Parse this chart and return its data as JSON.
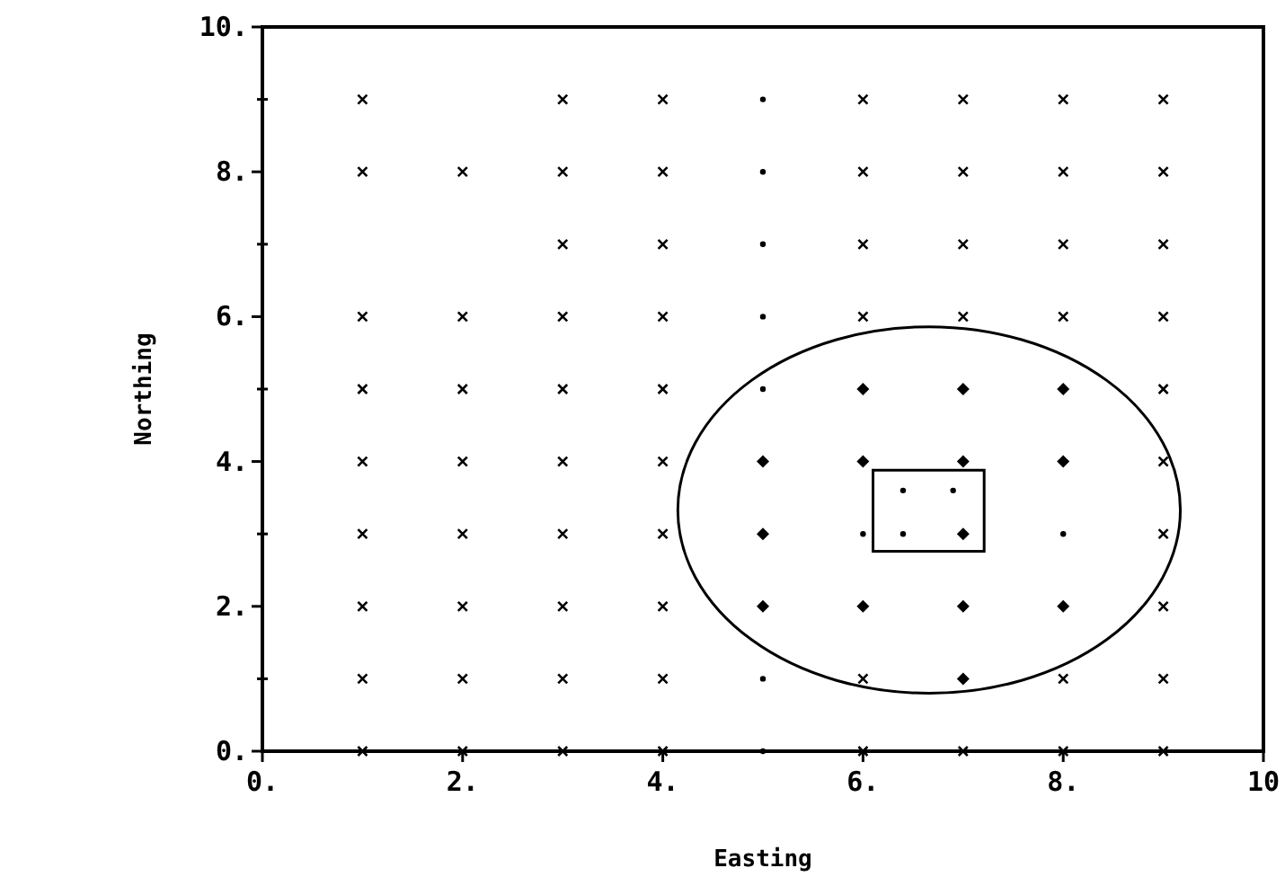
{
  "chart_data": {
    "type": "scatter",
    "xlabel": "Easting",
    "ylabel": "Northing",
    "xlim": [
      0,
      10
    ],
    "ylim": [
      0,
      10
    ],
    "xticks": [
      {
        "value": 0,
        "label": "0."
      },
      {
        "value": 2,
        "label": "2."
      },
      {
        "value": 4,
        "label": "4."
      },
      {
        "value": 6,
        "label": "6."
      },
      {
        "value": 8,
        "label": "8."
      },
      {
        "value": 10,
        "label": "10"
      }
    ],
    "yticks": [
      {
        "value": 0,
        "label": "0."
      },
      {
        "value": 1,
        "label": null
      },
      {
        "value": 2,
        "label": "2."
      },
      {
        "value": 3,
        "label": null
      },
      {
        "value": 4,
        "label": "4."
      },
      {
        "value": 5,
        "label": null
      },
      {
        "value": 6,
        "label": "6."
      },
      {
        "value": 7,
        "label": null
      },
      {
        "value": 8,
        "label": "8."
      },
      {
        "value": 9,
        "label": null
      },
      {
        "value": 10,
        "label": "10."
      }
    ],
    "series": [
      {
        "color": "#000000",
        "marker": "cross",
        "x": [
          1,
          2,
          3,
          4,
          6,
          7,
          8,
          9,
          1,
          2,
          3,
          4,
          6,
          8,
          9,
          1,
          2,
          3,
          4,
          9,
          1,
          2,
          3,
          4,
          9,
          1,
          2,
          3,
          4,
          9,
          1,
          2,
          3,
          4,
          9,
          1,
          2,
          3,
          4,
          6,
          7,
          8,
          9,
          3,
          4,
          6,
          7,
          8,
          9,
          1,
          2,
          3,
          4,
          6,
          7,
          8,
          9,
          1,
          3,
          4,
          6,
          7,
          8,
          9
        ],
        "values": [
          0,
          0,
          0,
          0,
          0,
          0,
          0,
          0,
          1,
          1,
          1,
          1,
          1,
          1,
          1,
          2,
          2,
          2,
          2,
          2,
          3,
          3,
          3,
          3,
          3,
          4,
          4,
          4,
          4,
          4,
          5,
          5,
          5,
          5,
          5,
          6,
          6,
          6,
          6,
          6,
          6,
          6,
          6,
          7,
          7,
          7,
          7,
          7,
          7,
          8,
          8,
          8,
          8,
          8,
          8,
          8,
          8,
          9,
          9,
          9,
          9,
          9,
          9,
          9
        ]
      },
      {
        "color": "#000000",
        "marker": "diamond",
        "x": [
          6,
          7,
          8,
          5,
          6,
          7,
          8,
          5,
          7,
          5,
          6,
          7,
          8,
          7
        ],
        "values": [
          5,
          5,
          5,
          4,
          4,
          4,
          4,
          3,
          3,
          2,
          2,
          2,
          2,
          1
        ]
      },
      {
        "color": "#000000",
        "marker": "circle",
        "x": [
          5,
          5,
          5,
          5,
          5,
          5,
          5,
          6,
          8,
          6.4,
          6.9,
          6.4
        ],
        "values": [
          0,
          1,
          5,
          6,
          7,
          8,
          9,
          3,
          3,
          3.6,
          3.6,
          3.0
        ]
      }
    ]
  }
}
